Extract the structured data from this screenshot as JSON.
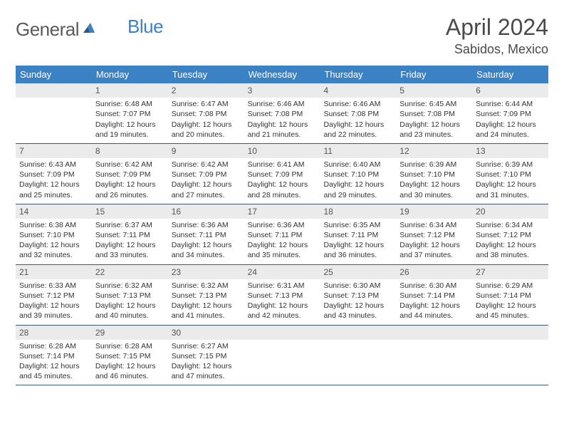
{
  "brand": {
    "part1": "General",
    "part2": "Blue"
  },
  "title": "April 2024",
  "location": "Sabidos, Mexico",
  "colors": {
    "header_bg": "#3b82c4",
    "daynum_bg": "#ebebeb",
    "border": "#3b5a7a",
    "text": "#333333",
    "title": "#4a4a4a"
  },
  "dayNames": [
    "Sunday",
    "Monday",
    "Tuesday",
    "Wednesday",
    "Thursday",
    "Friday",
    "Saturday"
  ],
  "weeks": [
    [
      null,
      {
        "n": "1",
        "sr": "6:48 AM",
        "ss": "7:07 PM",
        "dl": "12 hours and 19 minutes."
      },
      {
        "n": "2",
        "sr": "6:47 AM",
        "ss": "7:08 PM",
        "dl": "12 hours and 20 minutes."
      },
      {
        "n": "3",
        "sr": "6:46 AM",
        "ss": "7:08 PM",
        "dl": "12 hours and 21 minutes."
      },
      {
        "n": "4",
        "sr": "6:46 AM",
        "ss": "7:08 PM",
        "dl": "12 hours and 22 minutes."
      },
      {
        "n": "5",
        "sr": "6:45 AM",
        "ss": "7:08 PM",
        "dl": "12 hours and 23 minutes."
      },
      {
        "n": "6",
        "sr": "6:44 AM",
        "ss": "7:09 PM",
        "dl": "12 hours and 24 minutes."
      }
    ],
    [
      {
        "n": "7",
        "sr": "6:43 AM",
        "ss": "7:09 PM",
        "dl": "12 hours and 25 minutes."
      },
      {
        "n": "8",
        "sr": "6:42 AM",
        "ss": "7:09 PM",
        "dl": "12 hours and 26 minutes."
      },
      {
        "n": "9",
        "sr": "6:42 AM",
        "ss": "7:09 PM",
        "dl": "12 hours and 27 minutes."
      },
      {
        "n": "10",
        "sr": "6:41 AM",
        "ss": "7:09 PM",
        "dl": "12 hours and 28 minutes."
      },
      {
        "n": "11",
        "sr": "6:40 AM",
        "ss": "7:10 PM",
        "dl": "12 hours and 29 minutes."
      },
      {
        "n": "12",
        "sr": "6:39 AM",
        "ss": "7:10 PM",
        "dl": "12 hours and 30 minutes."
      },
      {
        "n": "13",
        "sr": "6:39 AM",
        "ss": "7:10 PM",
        "dl": "12 hours and 31 minutes."
      }
    ],
    [
      {
        "n": "14",
        "sr": "6:38 AM",
        "ss": "7:10 PM",
        "dl": "12 hours and 32 minutes."
      },
      {
        "n": "15",
        "sr": "6:37 AM",
        "ss": "7:11 PM",
        "dl": "12 hours and 33 minutes."
      },
      {
        "n": "16",
        "sr": "6:36 AM",
        "ss": "7:11 PM",
        "dl": "12 hours and 34 minutes."
      },
      {
        "n": "17",
        "sr": "6:36 AM",
        "ss": "7:11 PM",
        "dl": "12 hours and 35 minutes."
      },
      {
        "n": "18",
        "sr": "6:35 AM",
        "ss": "7:11 PM",
        "dl": "12 hours and 36 minutes."
      },
      {
        "n": "19",
        "sr": "6:34 AM",
        "ss": "7:12 PM",
        "dl": "12 hours and 37 minutes."
      },
      {
        "n": "20",
        "sr": "6:34 AM",
        "ss": "7:12 PM",
        "dl": "12 hours and 38 minutes."
      }
    ],
    [
      {
        "n": "21",
        "sr": "6:33 AM",
        "ss": "7:12 PM",
        "dl": "12 hours and 39 minutes."
      },
      {
        "n": "22",
        "sr": "6:32 AM",
        "ss": "7:13 PM",
        "dl": "12 hours and 40 minutes."
      },
      {
        "n": "23",
        "sr": "6:32 AM",
        "ss": "7:13 PM",
        "dl": "12 hours and 41 minutes."
      },
      {
        "n": "24",
        "sr": "6:31 AM",
        "ss": "7:13 PM",
        "dl": "12 hours and 42 minutes."
      },
      {
        "n": "25",
        "sr": "6:30 AM",
        "ss": "7:13 PM",
        "dl": "12 hours and 43 minutes."
      },
      {
        "n": "26",
        "sr": "6:30 AM",
        "ss": "7:14 PM",
        "dl": "12 hours and 44 minutes."
      },
      {
        "n": "27",
        "sr": "6:29 AM",
        "ss": "7:14 PM",
        "dl": "12 hours and 45 minutes."
      }
    ],
    [
      {
        "n": "28",
        "sr": "6:28 AM",
        "ss": "7:14 PM",
        "dl": "12 hours and 45 minutes."
      },
      {
        "n": "29",
        "sr": "6:28 AM",
        "ss": "7:15 PM",
        "dl": "12 hours and 46 minutes."
      },
      {
        "n": "30",
        "sr": "6:27 AM",
        "ss": "7:15 PM",
        "dl": "12 hours and 47 minutes."
      },
      null,
      null,
      null,
      null
    ]
  ],
  "labels": {
    "sunrise": "Sunrise:",
    "sunset": "Sunset:",
    "daylight": "Daylight:"
  }
}
